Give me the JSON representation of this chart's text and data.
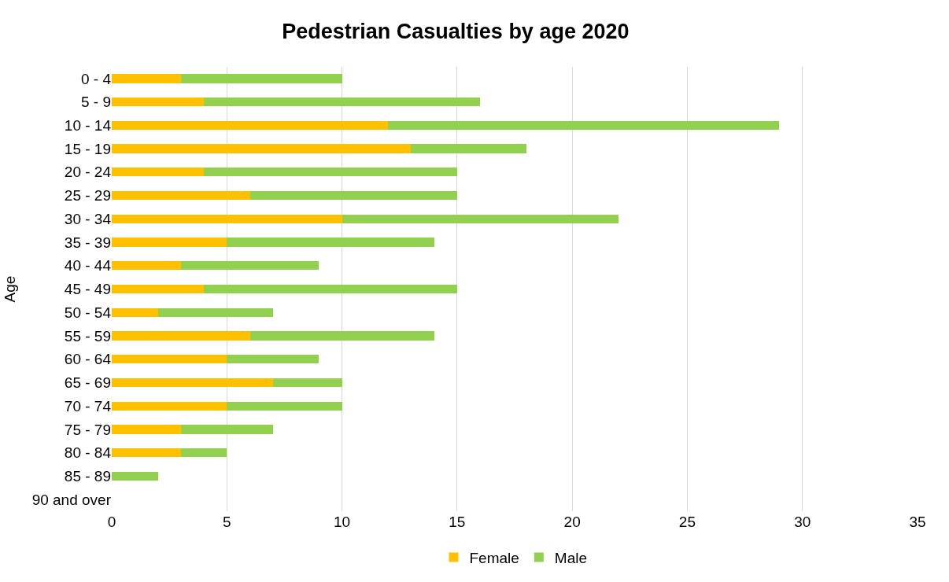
{
  "chart_data": {
    "type": "bar",
    "orientation": "horizontal",
    "stacked": true,
    "title": "Pedestrian Casualties by age 2020",
    "ylabel": "Age",
    "categories": [
      "0 - 4",
      "5 - 9",
      "10 - 14",
      "15 - 19",
      "20 - 24",
      "25 - 29",
      "30 - 34",
      "35 - 39",
      "40 - 44",
      "45 - 49",
      "50 - 54",
      "55 - 59",
      "60 - 64",
      "65 - 69",
      "70 - 74",
      "75 - 79",
      "80 - 84",
      "85 - 89",
      "90 and over"
    ],
    "series": [
      {
        "name": "Female",
        "color": "#ffc000",
        "values": [
          3,
          4,
          12,
          13,
          4,
          6,
          10,
          5,
          3,
          4,
          2,
          6,
          5,
          7,
          5,
          3,
          3,
          0,
          0
        ]
      },
      {
        "name": "Male",
        "color": "#92d050",
        "values": [
          7,
          12,
          17,
          5,
          11,
          9,
          12,
          9,
          6,
          11,
          5,
          8,
          4,
          3,
          5,
          4,
          2,
          2,
          0
        ]
      }
    ],
    "xlim": [
      0,
      35
    ],
    "xticks": [
      0,
      5,
      10,
      15,
      20,
      25,
      30,
      35
    ],
    "grid": "x",
    "legend": "bottom"
  }
}
